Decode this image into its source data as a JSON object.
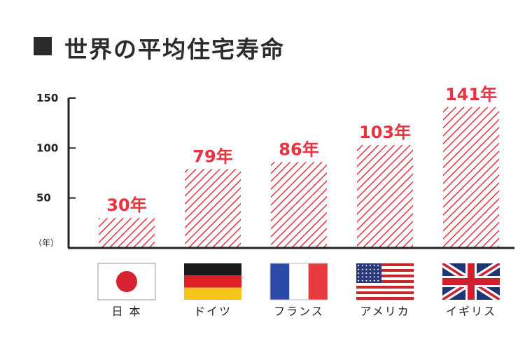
{
  "title": "世界の平均住宅寿命",
  "colors": {
    "bar": "#e8323f",
    "axis": "#222222",
    "title": "#2b2b2b"
  },
  "chart_data": {
    "type": "bar",
    "title": "世界の平均住宅寿命",
    "ylabel": "（年）",
    "ylim": [
      0,
      150
    ],
    "yticks": [
      "50",
      "100",
      "150"
    ],
    "categories": [
      "日 本",
      "ドイツ",
      "フランス",
      "アメリカ",
      "イギリス"
    ],
    "values": [
      30,
      79,
      86,
      103,
      141
    ],
    "data_labels": [
      "30年",
      "79年",
      "86年",
      "103年",
      "141年"
    ],
    "flags": [
      "japan-flag-icon",
      "germany-flag-icon",
      "france-flag-icon",
      "usa-flag-icon",
      "uk-flag-icon"
    ],
    "grid": false,
    "legend": "none"
  }
}
